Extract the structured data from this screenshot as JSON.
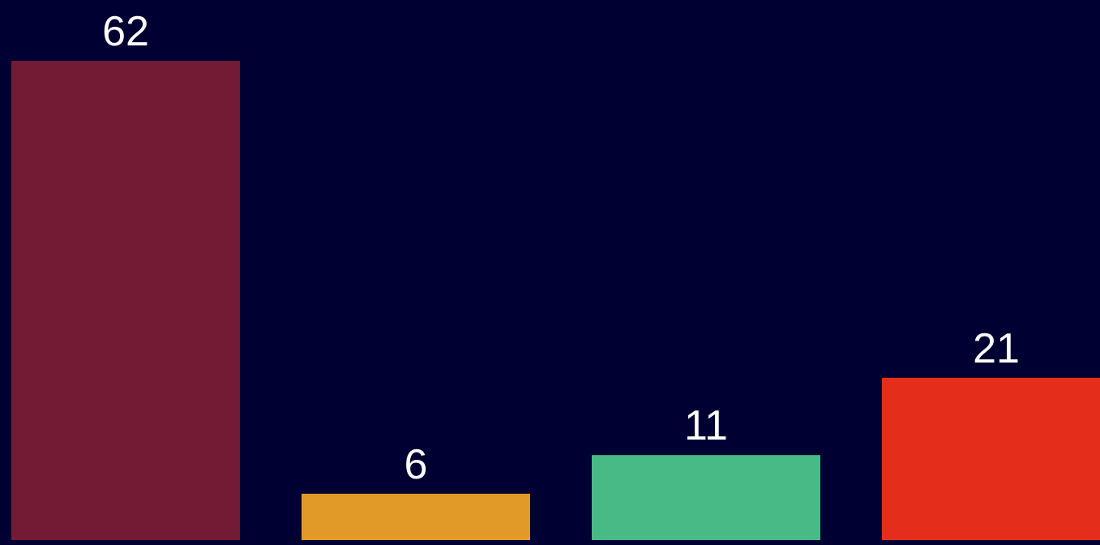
{
  "background_color": "#000033",
  "chart_data": {
    "type": "bar",
    "values": [
      62,
      6,
      11,
      21
    ],
    "data_labels": [
      "62",
      "6",
      "11",
      "21"
    ],
    "colors": [
      "#731B35",
      "#E19A27",
      "#48BA86",
      "#E52D1C"
    ],
    "ylim": [
      0,
      62
    ],
    "grid": false,
    "legend": "none"
  }
}
